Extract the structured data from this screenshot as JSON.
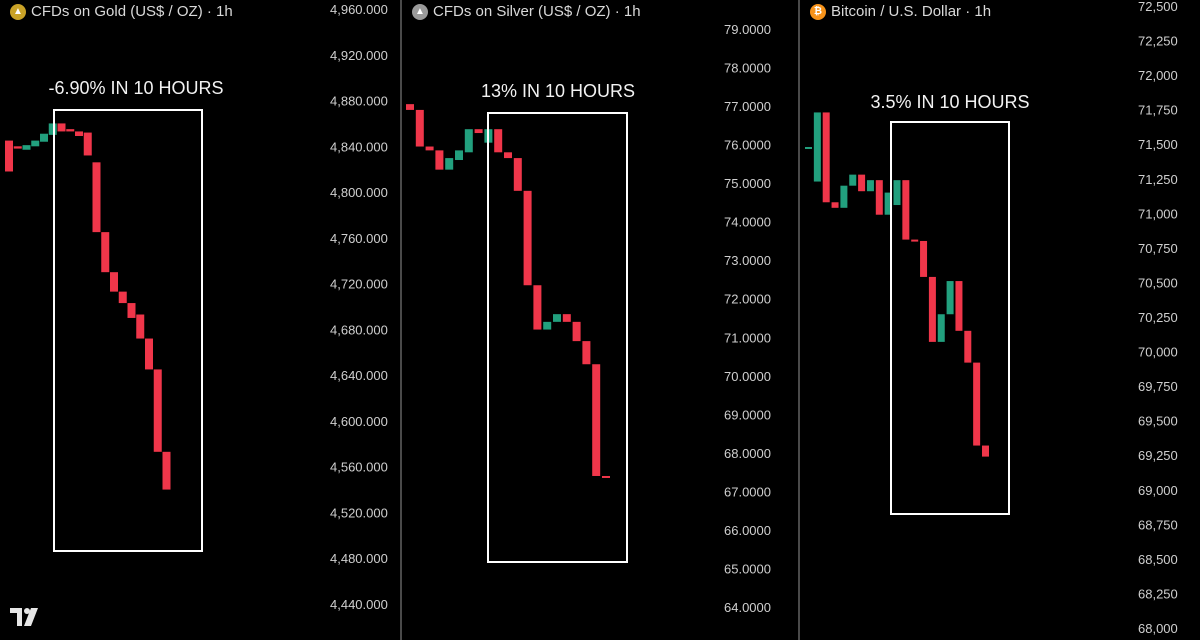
{
  "panels": [
    {
      "id": "gold",
      "title": "CFDs on Gold (US$ / OZ) · 1h",
      "icon": "gold-bars-icon",
      "annotation": "-6.90% IN 10 HOURS",
      "y_ticks": [
        "4,960.000",
        "4,920.000",
        "4,880.000",
        "4,840.000",
        "4,800.000",
        "4,760.000",
        "4,720.000",
        "4,680.000",
        "4,640.000",
        "4,600.000",
        "4,560.000",
        "4,520.000",
        "4,480.000",
        "4,440.000"
      ]
    },
    {
      "id": "silver",
      "title": "CFDs on Silver (US$ / OZ) · 1h",
      "icon": "silver-bars-icon",
      "annotation": "13% IN 10 HOURS",
      "y_ticks": [
        "79.0000",
        "78.0000",
        "77.0000",
        "76.0000",
        "75.0000",
        "74.0000",
        "73.0000",
        "72.0000",
        "71.0000",
        "70.0000",
        "69.0000",
        "68.0000",
        "67.0000",
        "66.0000",
        "65.0000",
        "64.0000"
      ]
    },
    {
      "id": "bitcoin",
      "title": "Bitcoin / U.S. Dollar · 1h",
      "icon": "bitcoin-icon",
      "annotation": "3.5% IN 10 HOURS",
      "y_ticks": [
        "72,500",
        "72,250",
        "72,000",
        "71,750",
        "71,500",
        "71,250",
        "71,000",
        "70,750",
        "70,500",
        "70,250",
        "70,000",
        "69,750",
        "69,500",
        "69,250",
        "69,000",
        "68,750",
        "68,500",
        "68,250",
        "68,000"
      ]
    }
  ],
  "chart_data": [
    {
      "type": "candlestick",
      "title": "CFDs on Gold (US$ / OZ) · 1h",
      "ylim": [
        4420,
        4970
      ],
      "candles": [
        {
          "o": 4845,
          "c": 4818
        },
        {
          "o": 4840,
          "c": 4838
        },
        {
          "o": 4837,
          "c": 4841
        },
        {
          "o": 4840,
          "c": 4845
        },
        {
          "o": 4844,
          "c": 4851
        },
        {
          "o": 4850,
          "c": 4860
        },
        {
          "o": 4860,
          "c": 4853
        },
        {
          "o": 4855,
          "c": 4853
        },
        {
          "o": 4853,
          "c": 4849
        },
        {
          "o": 4852,
          "c": 4832
        },
        {
          "o": 4826,
          "c": 4765
        },
        {
          "o": 4765,
          "c": 4730
        },
        {
          "o": 4730,
          "c": 4713
        },
        {
          "o": 4713,
          "c": 4703
        },
        {
          "o": 4703,
          "c": 4690
        },
        {
          "o": 4693,
          "c": 4672
        },
        {
          "o": 4672,
          "c": 4645
        },
        {
          "o": 4645,
          "c": 4573
        },
        {
          "o": 4573,
          "c": 4540
        }
      ]
    },
    {
      "type": "candlestick",
      "title": "CFDs on Silver (US$ / OZ) · 1h",
      "ylim": [
        63.6,
        79.45
      ],
      "candles": [
        {
          "o": 77.05,
          "c": 76.9
        },
        {
          "o": 76.9,
          "c": 75.95
        },
        {
          "o": 75.95,
          "c": 75.85
        },
        {
          "o": 75.85,
          "c": 75.35
        },
        {
          "o": 75.35,
          "c": 75.65
        },
        {
          "o": 75.6,
          "c": 75.85
        },
        {
          "o": 75.8,
          "c": 76.4
        },
        {
          "o": 76.4,
          "c": 76.3
        },
        {
          "o": 76.05,
          "c": 76.4
        },
        {
          "o": 76.4,
          "c": 75.8
        },
        {
          "o": 75.8,
          "c": 75.65
        },
        {
          "o": 75.65,
          "c": 74.8
        },
        {
          "o": 74.8,
          "c": 72.35
        },
        {
          "o": 72.35,
          "c": 71.2
        },
        {
          "o": 71.2,
          "c": 71.4
        },
        {
          "o": 71.4,
          "c": 71.6
        },
        {
          "o": 71.6,
          "c": 71.4
        },
        {
          "o": 71.4,
          "c": 70.9
        },
        {
          "o": 70.9,
          "c": 70.3
        },
        {
          "o": 70.3,
          "c": 67.4
        },
        {
          "o": 67.4,
          "c": 67.35
        }
      ]
    },
    {
      "type": "candlestick",
      "title": "Bitcoin / U.S. Dollar · 1h",
      "ylim": [
        67960,
        72640
      ],
      "candles": [
        {
          "o": 71480,
          "c": 71480
        },
        {
          "o": 71230,
          "c": 71730
        },
        {
          "o": 71730,
          "c": 71080
        },
        {
          "o": 71080,
          "c": 71040
        },
        {
          "o": 71040,
          "c": 71200
        },
        {
          "o": 71200,
          "c": 71280
        },
        {
          "o": 71280,
          "c": 71160
        },
        {
          "o": 71160,
          "c": 71240
        },
        {
          "o": 71240,
          "c": 70990
        },
        {
          "o": 70990,
          "c": 71150
        },
        {
          "o": 71060,
          "c": 71240
        },
        {
          "o": 71240,
          "c": 70810
        },
        {
          "o": 70810,
          "c": 70800
        },
        {
          "o": 70800,
          "c": 70540
        },
        {
          "o": 70540,
          "c": 70070
        },
        {
          "o": 70070,
          "c": 70270
        },
        {
          "o": 70270,
          "c": 70510
        },
        {
          "o": 70510,
          "c": 70150
        },
        {
          "o": 70150,
          "c": 69920
        },
        {
          "o": 69920,
          "c": 69320
        },
        {
          "o": 69320,
          "c": 69240
        }
      ]
    }
  ],
  "colors": {
    "background": "#000000",
    "up": "#22a07e",
    "down": "#f0364a",
    "axis_text": "#cfcfcf",
    "box": "#ffffff"
  },
  "logo_icon": "tradingview-logo-icon"
}
